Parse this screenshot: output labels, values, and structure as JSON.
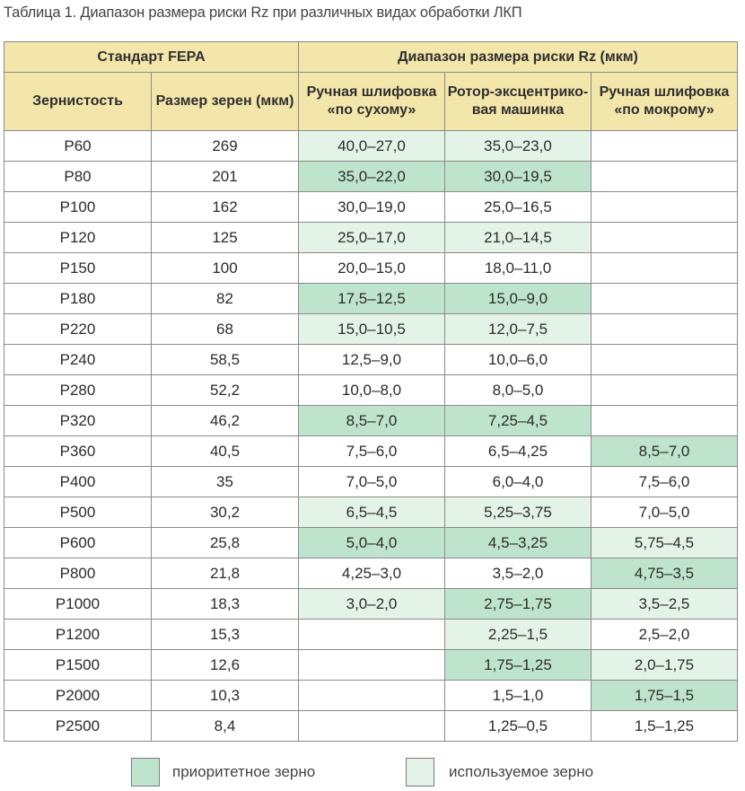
{
  "caption": "Таблица 1. Диапазон размера риски Rz при различных видах обработки ЛКП",
  "header": {
    "group_standard": "Стандарт FEPA",
    "group_range": "Диапазон размера риски Rz (мкм)",
    "col_grit": "Зернистость",
    "col_size": "Размер зерен (мкм)",
    "col_dry": "Ручная шлифовка «по сухому»",
    "col_orbital": "Ротор-эксцентрико-вая машинка",
    "col_wet": "Ручная шлифовка «по мокрому»"
  },
  "rows": [
    {
      "grit": "P60",
      "size": "269",
      "dry": {
        "v": "40,0–27,0",
        "hl": "used"
      },
      "orbital": {
        "v": "35,0–23,0",
        "hl": "used"
      },
      "wet": {
        "v": "",
        "hl": ""
      }
    },
    {
      "grit": "P80",
      "size": "201",
      "dry": {
        "v": "35,0–22,0",
        "hl": "priority"
      },
      "orbital": {
        "v": "30,0–19,5",
        "hl": "priority"
      },
      "wet": {
        "v": "",
        "hl": ""
      }
    },
    {
      "grit": "P100",
      "size": "162",
      "dry": {
        "v": "30,0–19,0",
        "hl": ""
      },
      "orbital": {
        "v": "25,0–16,5",
        "hl": ""
      },
      "wet": {
        "v": "",
        "hl": ""
      }
    },
    {
      "grit": "P120",
      "size": "125",
      "dry": {
        "v": "25,0–17,0",
        "hl": "used"
      },
      "orbital": {
        "v": "21,0–14,5",
        "hl": "used"
      },
      "wet": {
        "v": "",
        "hl": ""
      }
    },
    {
      "grit": "P150",
      "size": "100",
      "dry": {
        "v": "20,0–15,0",
        "hl": ""
      },
      "orbital": {
        "v": "18,0–11,0",
        "hl": ""
      },
      "wet": {
        "v": "",
        "hl": ""
      }
    },
    {
      "grit": "P180",
      "size": "82",
      "dry": {
        "v": "17,5–12,5",
        "hl": "priority"
      },
      "orbital": {
        "v": "15,0–9,0",
        "hl": "priority"
      },
      "wet": {
        "v": "",
        "hl": ""
      }
    },
    {
      "grit": "P220",
      "size": "68",
      "dry": {
        "v": "15,0–10,5",
        "hl": "used"
      },
      "orbital": {
        "v": "12,0–7,5",
        "hl": "used"
      },
      "wet": {
        "v": "",
        "hl": ""
      }
    },
    {
      "grit": "P240",
      "size": "58,5",
      "dry": {
        "v": "12,5–9,0",
        "hl": ""
      },
      "orbital": {
        "v": "10,0–6,0",
        "hl": ""
      },
      "wet": {
        "v": "",
        "hl": ""
      }
    },
    {
      "grit": "P280",
      "size": "52,2",
      "dry": {
        "v": "10,0–8,0",
        "hl": ""
      },
      "orbital": {
        "v": "8,0–5,0",
        "hl": ""
      },
      "wet": {
        "v": "",
        "hl": ""
      }
    },
    {
      "grit": "P320",
      "size": "46,2",
      "dry": {
        "v": "8,5–7,0",
        "hl": "priority"
      },
      "orbital": {
        "v": "7,25–4,5",
        "hl": "priority"
      },
      "wet": {
        "v": "",
        "hl": ""
      }
    },
    {
      "grit": "P360",
      "size": "40,5",
      "dry": {
        "v": "7,5–6,0",
        "hl": ""
      },
      "orbital": {
        "v": "6,5–4,25",
        "hl": ""
      },
      "wet": {
        "v": "8,5–7,0",
        "hl": "priority"
      }
    },
    {
      "grit": "P400",
      "size": "35",
      "dry": {
        "v": "7,0–5,0",
        "hl": ""
      },
      "orbital": {
        "v": "6,0–4,0",
        "hl": ""
      },
      "wet": {
        "v": "7,5–6,0",
        "hl": ""
      }
    },
    {
      "grit": "P500",
      "size": "30,2",
      "dry": {
        "v": "6,5–4,5",
        "hl": "used"
      },
      "orbital": {
        "v": "5,25–3,75",
        "hl": "used"
      },
      "wet": {
        "v": "7,0–5,0",
        "hl": ""
      }
    },
    {
      "grit": "P600",
      "size": "25,8",
      "dry": {
        "v": "5,0–4,0",
        "hl": "priority"
      },
      "orbital": {
        "v": "4,5–3,25",
        "hl": "priority"
      },
      "wet": {
        "v": "5,75–4,5",
        "hl": "used"
      }
    },
    {
      "grit": "P800",
      "size": "21,8",
      "dry": {
        "v": "4,25–3,0",
        "hl": ""
      },
      "orbital": {
        "v": "3,5–2,0",
        "hl": ""
      },
      "wet": {
        "v": "4,75–3,5",
        "hl": "priority"
      }
    },
    {
      "grit": "P1000",
      "size": "18,3",
      "dry": {
        "v": "3,0–2,0",
        "hl": "used"
      },
      "orbital": {
        "v": "2,75–1,75",
        "hl": "priority"
      },
      "wet": {
        "v": "3,5–2,5",
        "hl": "used"
      }
    },
    {
      "grit": "P1200",
      "size": "15,3",
      "dry": {
        "v": "",
        "hl": ""
      },
      "orbital": {
        "v": "2,25–1,5",
        "hl": "used"
      },
      "wet": {
        "v": "2,5–2,0",
        "hl": ""
      }
    },
    {
      "grit": "P1500",
      "size": "12,6",
      "dry": {
        "v": "",
        "hl": ""
      },
      "orbital": {
        "v": "1,75–1,25",
        "hl": "priority"
      },
      "wet": {
        "v": "2,0–1,75",
        "hl": "used"
      }
    },
    {
      "grit": "P2000",
      "size": "10,3",
      "dry": {
        "v": "",
        "hl": ""
      },
      "orbital": {
        "v": "1,5–1,0",
        "hl": ""
      },
      "wet": {
        "v": "1,75–1,5",
        "hl": "priority"
      }
    },
    {
      "grit": "P2500",
      "size": "8,4",
      "dry": {
        "v": "",
        "hl": ""
      },
      "orbital": {
        "v": "1,25–0,5",
        "hl": ""
      },
      "wet": {
        "v": "1,5–1,25",
        "hl": ""
      }
    }
  ],
  "legend": {
    "priority_label": "приоритетное зерно",
    "used_label": "используемое зерно"
  },
  "colors": {
    "header_bg": "#f3e6ab",
    "priority": "#bfe4cd",
    "used": "#e3f3e8",
    "border": "#8a8a8a"
  }
}
